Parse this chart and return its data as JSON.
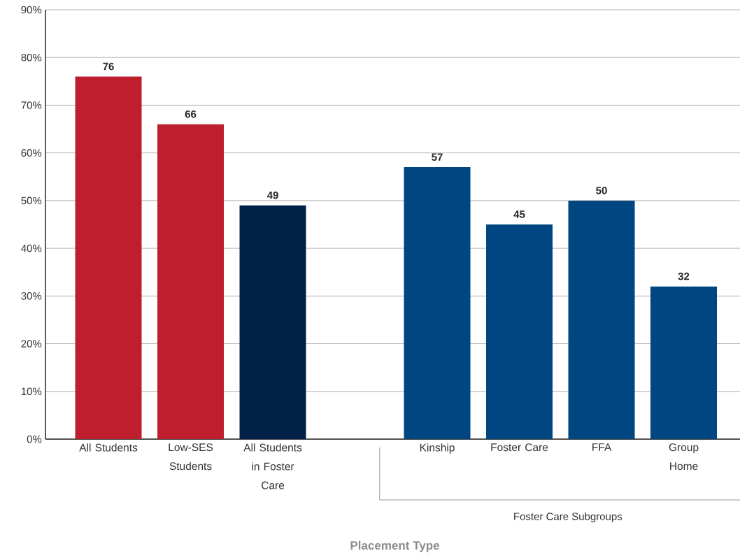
{
  "chart_data": {
    "type": "bar",
    "xlabel": "Placement Type",
    "categories": [
      "All Students",
      "Low-SES Students",
      "All Students in Foster Care",
      null,
      "Kinship",
      "Foster Care",
      "FFA",
      "Group Home"
    ],
    "values": [
      76,
      66,
      49,
      null,
      57,
      45,
      50,
      32
    ],
    "colors": [
      "#be1e2d",
      "#be1e2d",
      "#002147",
      null,
      "#004680",
      "#004680",
      "#004680",
      "#004680"
    ],
    "ylim": [
      0,
      90
    ],
    "yticks": [
      {
        "value": 0,
        "label": "0%"
      },
      {
        "value": 10,
        "label": "10%"
      },
      {
        "value": 20,
        "label": "20%"
      },
      {
        "value": 30,
        "label": "30%"
      },
      {
        "value": 40,
        "label": "40%"
      },
      {
        "value": 50,
        "label": "50%"
      },
      {
        "value": 60,
        "label": "60%"
      },
      {
        "value": 70,
        "label": "70%"
      },
      {
        "value": 80,
        "label": "80%"
      },
      {
        "value": 90,
        "label": "90%"
      }
    ],
    "grid": "y",
    "data_labels": true,
    "annotations": [
      "Foster Care Subgroups"
    ]
  }
}
